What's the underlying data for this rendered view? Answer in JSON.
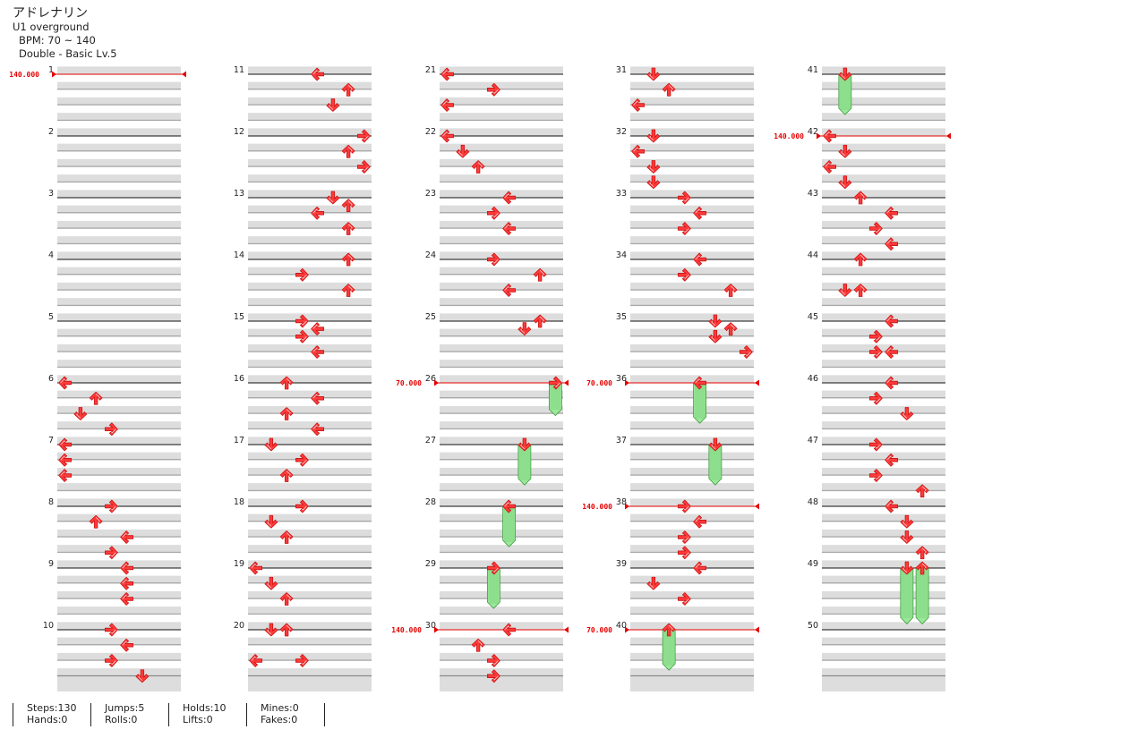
{
  "song": {
    "title": "アドレナリン",
    "artist": "U1 overground",
    "bpm": "BPM: 70 ~ 140",
    "chart": "Double - Basic Lv.5"
  },
  "colors": {
    "arrow": "#ff3a3a",
    "arrow_stroke": "#c81414",
    "hold": "#9be89b",
    "hold_stroke": "#3c9a3c",
    "bpm_line": "#e60000",
    "band": "#dddddd"
  },
  "bpm_changes": [
    {
      "measure": 1,
      "value": "140.000"
    },
    {
      "measure": 26,
      "value": "70.000"
    },
    {
      "measure": 30,
      "value": "140.000"
    },
    {
      "measure": 36,
      "value": "70.000"
    },
    {
      "measure": 38,
      "value": "140.000"
    },
    {
      "measure": 40,
      "value": "70.000"
    },
    {
      "measure": 42,
      "value": "140.000"
    }
  ],
  "notes": [
    [
      6,
      0,
      0
    ],
    [
      6,
      0.25,
      2
    ],
    [
      6,
      0.5,
      1
    ],
    [
      6,
      0.75,
      3
    ],
    [
      7,
      0,
      0
    ],
    [
      7,
      0.25,
      0
    ],
    [
      7,
      0.5,
      0
    ],
    [
      8,
      0,
      3
    ],
    [
      8,
      0.25,
      2
    ],
    [
      8,
      0.5,
      4
    ],
    [
      8,
      0.75,
      3
    ],
    [
      9,
      0,
      4
    ],
    [
      9,
      0.25,
      4
    ],
    [
      9,
      0.5,
      4
    ],
    [
      10,
      0,
      3
    ],
    [
      10,
      0.25,
      4
    ],
    [
      10,
      0.5,
      3
    ],
    [
      10,
      0.75,
      5
    ],
    [
      11,
      0,
      4
    ],
    [
      11,
      0.25,
      6
    ],
    [
      11,
      0.5,
      5
    ],
    [
      12,
      0,
      7
    ],
    [
      12,
      0.25,
      6
    ],
    [
      12,
      0.5,
      7
    ],
    [
      13,
      0,
      5
    ],
    [
      13,
      0.125,
      6
    ],
    [
      13,
      0.25,
      4
    ],
    [
      13,
      0.5,
      6
    ],
    [
      14,
      0,
      6
    ],
    [
      14,
      0.25,
      3
    ],
    [
      14,
      0.5,
      6
    ],
    [
      15,
      0,
      3
    ],
    [
      15,
      0.125,
      4
    ],
    [
      15,
      0.25,
      3
    ],
    [
      15,
      0.5,
      4
    ],
    [
      16,
      0,
      2
    ],
    [
      16,
      0.25,
      4
    ],
    [
      16,
      0.5,
      2
    ],
    [
      16,
      0.75,
      4
    ],
    [
      17,
      0,
      1
    ],
    [
      17,
      0.25,
      3
    ],
    [
      17,
      0.5,
      2
    ],
    [
      18,
      0,
      3
    ],
    [
      18,
      0.25,
      1
    ],
    [
      18,
      0.5,
      2
    ],
    [
      19,
      0,
      0
    ],
    [
      19,
      0.25,
      1
    ],
    [
      19,
      0.5,
      2
    ],
    [
      20,
      0,
      1
    ],
    [
      20,
      0,
      2
    ],
    [
      20,
      0.5,
      0
    ],
    [
      20,
      0.5,
      3
    ],
    [
      21,
      0,
      0
    ],
    [
      21,
      0.25,
      3
    ],
    [
      21,
      0.5,
      0
    ],
    [
      22,
      0,
      0
    ],
    [
      22,
      0.25,
      1
    ],
    [
      22,
      0.5,
      2
    ],
    [
      23,
      0,
      4
    ],
    [
      23,
      0.25,
      3
    ],
    [
      23,
      0.5,
      4
    ],
    [
      24,
      0,
      3
    ],
    [
      24,
      0.25,
      6
    ],
    [
      24,
      0.5,
      4
    ],
    [
      25,
      0,
      6
    ],
    [
      25,
      0.125,
      5
    ],
    [
      26,
      0,
      7
    ],
    [
      27,
      0,
      5
    ],
    [
      28,
      0,
      4
    ],
    [
      29,
      0,
      3
    ],
    [
      30,
      0,
      4
    ],
    [
      30,
      0.25,
      2
    ],
    [
      30,
      0.5,
      3
    ],
    [
      30,
      0.75,
      3
    ],
    [
      31,
      0,
      1
    ],
    [
      31,
      0.25,
      2
    ],
    [
      31,
      0.5,
      0
    ],
    [
      32,
      0,
      1
    ],
    [
      32,
      0.25,
      0
    ],
    [
      32,
      0.5,
      1
    ],
    [
      32,
      0.75,
      1
    ],
    [
      33,
      0,
      3
    ],
    [
      33,
      0.25,
      4
    ],
    [
      33,
      0.5,
      3
    ],
    [
      34,
      0,
      4
    ],
    [
      34,
      0.25,
      3
    ],
    [
      34,
      0.5,
      6
    ],
    [
      35,
      0,
      5
    ],
    [
      35,
      0.125,
      6
    ],
    [
      35,
      0.25,
      5
    ],
    [
      35,
      0.5,
      7
    ],
    [
      36,
      0,
      4
    ],
    [
      37,
      0,
      5
    ],
    [
      38,
      0,
      3
    ],
    [
      38,
      0.25,
      4
    ],
    [
      38,
      0.5,
      3
    ],
    [
      38,
      0.75,
      3
    ],
    [
      39,
      0,
      4
    ],
    [
      39,
      0.25,
      1
    ],
    [
      39,
      0.5,
      3
    ],
    [
      40,
      0,
      2
    ],
    [
      41,
      0,
      1
    ],
    [
      42,
      0,
      0
    ],
    [
      42,
      0.25,
      1
    ],
    [
      42,
      0.5,
      0
    ],
    [
      42,
      0.75,
      1
    ],
    [
      43,
      0,
      2
    ],
    [
      43,
      0.25,
      4
    ],
    [
      43,
      0.5,
      3
    ],
    [
      43,
      0.75,
      4
    ],
    [
      44,
      0,
      2
    ],
    [
      44,
      0.5,
      1
    ],
    [
      44,
      0.5,
      2
    ],
    [
      45,
      0,
      4
    ],
    [
      45,
      0.25,
      3
    ],
    [
      45,
      0.5,
      3
    ],
    [
      45,
      0.5,
      4
    ],
    [
      46,
      0,
      4
    ],
    [
      46,
      0.25,
      3
    ],
    [
      46,
      0.5,
      5
    ],
    [
      47,
      0,
      3
    ],
    [
      47,
      0.25,
      4
    ],
    [
      47,
      0.5,
      3
    ],
    [
      47,
      0.75,
      6
    ],
    [
      48,
      0,
      4
    ],
    [
      48,
      0.25,
      5
    ],
    [
      48,
      0.5,
      5
    ],
    [
      48,
      0.75,
      6
    ],
    [
      49,
      0,
      5
    ],
    [
      49,
      0,
      6
    ]
  ],
  "holds": [
    [
      26,
      0,
      0.5,
      7
    ],
    [
      27,
      0,
      0.625,
      5
    ],
    [
      28,
      0,
      0.625,
      4
    ],
    [
      29,
      0,
      0.625,
      3
    ],
    [
      36,
      0,
      0.625,
      4
    ],
    [
      37,
      0,
      0.625,
      5
    ],
    [
      40,
      0,
      0.625,
      2
    ],
    [
      41,
      0,
      0.625,
      1
    ],
    [
      49,
      0,
      0.875,
      5
    ],
    [
      49,
      0,
      0.875,
      6
    ]
  ],
  "stats": [
    {
      "a": "Steps:130",
      "b": "Hands:0"
    },
    {
      "a": "Jumps:5",
      "b": "Rolls:0"
    },
    {
      "a": "Holds:10",
      "b": "Lifts:0"
    },
    {
      "a": "Mines:0",
      "b": "Fakes:0"
    }
  ]
}
